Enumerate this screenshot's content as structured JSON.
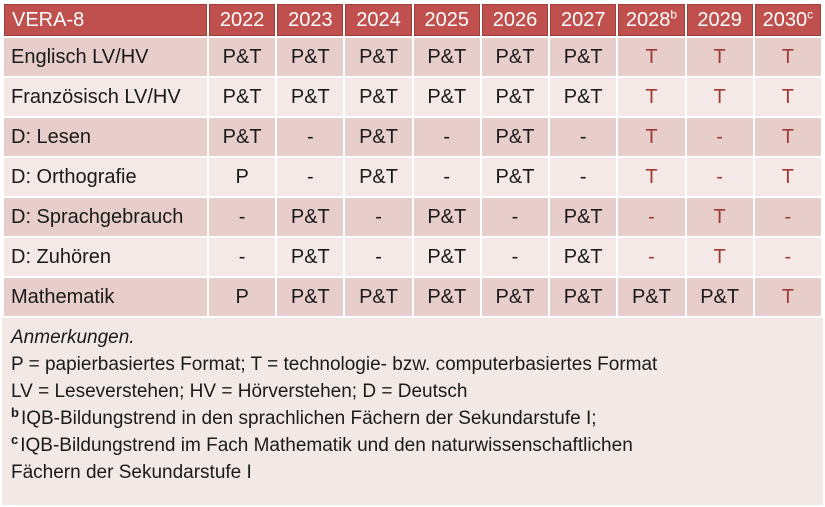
{
  "colors": {
    "header_bg": "#C0504D",
    "header_border": "#9D403C",
    "header_text": "#FFFFFF",
    "band_dark": "#E8CECB",
    "band_light": "#F4E9E6",
    "notes_bg": "#F2E9E6",
    "accent_text": "#9E3A34",
    "body_text": "#1A1A1A",
    "gridline": "#FFFFFF"
  },
  "table": {
    "title": "VERA-8",
    "header": [
      {
        "label": "VERA-8",
        "sup": ""
      },
      {
        "label": "2022",
        "sup": ""
      },
      {
        "label": "2023",
        "sup": ""
      },
      {
        "label": "2024",
        "sup": ""
      },
      {
        "label": "2025",
        "sup": ""
      },
      {
        "label": "2026",
        "sup": ""
      },
      {
        "label": "2027",
        "sup": ""
      },
      {
        "label": "2028",
        "sup": "b"
      },
      {
        "label": "2029",
        "sup": ""
      },
      {
        "label": "2030",
        "sup": "c"
      }
    ],
    "rows": [
      {
        "label": "Englisch LV/HV",
        "band": "dark",
        "cells": [
          {
            "v": "P&T",
            "red": false
          },
          {
            "v": "P&T",
            "red": false
          },
          {
            "v": "P&T",
            "red": false
          },
          {
            "v": "P&T",
            "red": false
          },
          {
            "v": "P&T",
            "red": false
          },
          {
            "v": "P&T",
            "red": false
          },
          {
            "v": "T",
            "red": true
          },
          {
            "v": "T",
            "red": true
          },
          {
            "v": "T",
            "red": true
          }
        ]
      },
      {
        "label": "Französisch LV/HV",
        "band": "light",
        "cells": [
          {
            "v": "P&T",
            "red": false
          },
          {
            "v": "P&T",
            "red": false
          },
          {
            "v": "P&T",
            "red": false
          },
          {
            "v": "P&T",
            "red": false
          },
          {
            "v": "P&T",
            "red": false
          },
          {
            "v": "P&T",
            "red": false
          },
          {
            "v": "T",
            "red": true
          },
          {
            "v": "T",
            "red": true
          },
          {
            "v": "T",
            "red": true
          }
        ]
      },
      {
        "label": "D: Lesen",
        "band": "dark",
        "cells": [
          {
            "v": "P&T",
            "red": false
          },
          {
            "v": "-",
            "red": false
          },
          {
            "v": "P&T",
            "red": false
          },
          {
            "v": "-",
            "red": false
          },
          {
            "v": "P&T",
            "red": false
          },
          {
            "v": "-",
            "red": false
          },
          {
            "v": "T",
            "red": true
          },
          {
            "v": "-",
            "red": true
          },
          {
            "v": "T",
            "red": true
          }
        ]
      },
      {
        "label": "D: Orthografie",
        "band": "light",
        "cells": [
          {
            "v": "P",
            "red": false
          },
          {
            "v": "-",
            "red": false
          },
          {
            "v": "P&T",
            "red": false
          },
          {
            "v": "-",
            "red": false
          },
          {
            "v": "P&T",
            "red": false
          },
          {
            "v": "-",
            "red": false
          },
          {
            "v": "T",
            "red": true
          },
          {
            "v": "-",
            "red": true
          },
          {
            "v": "T",
            "red": true
          }
        ]
      },
      {
        "label": "D: Sprachgebrauch",
        "band": "dark",
        "cells": [
          {
            "v": "-",
            "red": false
          },
          {
            "v": "P&T",
            "red": false
          },
          {
            "v": "-",
            "red": false
          },
          {
            "v": "P&T",
            "red": false
          },
          {
            "v": "-",
            "red": false
          },
          {
            "v": "P&T",
            "red": false
          },
          {
            "v": "-",
            "red": true
          },
          {
            "v": "T",
            "red": true
          },
          {
            "v": "-",
            "red": true
          }
        ]
      },
      {
        "label": "D: Zuhören",
        "band": "light",
        "cells": [
          {
            "v": "-",
            "red": false
          },
          {
            "v": "P&T",
            "red": false
          },
          {
            "v": "-",
            "red": false
          },
          {
            "v": "P&T",
            "red": false
          },
          {
            "v": "-",
            "red": false
          },
          {
            "v": "P&T",
            "red": false
          },
          {
            "v": "-",
            "red": true
          },
          {
            "v": "T",
            "red": true
          },
          {
            "v": "-",
            "red": true
          }
        ]
      },
      {
        "label": "Mathematik",
        "band": "dark",
        "cells": [
          {
            "v": "P",
            "red": false
          },
          {
            "v": "P&T",
            "red": false
          },
          {
            "v": "P&T",
            "red": false
          },
          {
            "v": "P&T",
            "red": false
          },
          {
            "v": "P&T",
            "red": false
          },
          {
            "v": "P&T",
            "red": false
          },
          {
            "v": "P&T",
            "red": false
          },
          {
            "v": "P&T",
            "red": false
          },
          {
            "v": "T",
            "red": true
          }
        ]
      }
    ]
  },
  "notes": {
    "title": "Anmerkungen.",
    "lines": [
      {
        "sup": "",
        "text": "P = papierbasiertes Format; T = technologie- bzw. computerbasiertes Format"
      },
      {
        "sup": "",
        "text": "LV = Leseverstehen; HV = Hörverstehen; D = Deutsch"
      },
      {
        "sup": "b",
        "text": "IQB-Bildungstrend in den sprachlichen Fächern der Sekundarstufe I;"
      },
      {
        "sup": "c",
        "text": "IQB-Bildungstrend im Fach Mathematik und den naturwissenschaftlichen"
      },
      {
        "sup": "",
        "text": "Fächern der Sekundarstufe I"
      }
    ]
  },
  "chart_data": {
    "type": "table",
    "title": "VERA-8",
    "columns": [
      "VERA-8",
      "2022",
      "2023",
      "2024",
      "2025",
      "2026",
      "2027",
      "2028",
      "2029",
      "2030"
    ],
    "rows": [
      [
        "Englisch LV/HV",
        "P&T",
        "P&T",
        "P&T",
        "P&T",
        "P&T",
        "P&T",
        "T",
        "T",
        "T"
      ],
      [
        "Französisch LV/HV",
        "P&T",
        "P&T",
        "P&T",
        "P&T",
        "P&T",
        "P&T",
        "T",
        "T",
        "T"
      ],
      [
        "D: Lesen",
        "P&T",
        "-",
        "P&T",
        "-",
        "P&T",
        "-",
        "T",
        "-",
        "T"
      ],
      [
        "D: Orthografie",
        "P",
        "-",
        "P&T",
        "-",
        "P&T",
        "-",
        "T",
        "-",
        "T"
      ],
      [
        "D: Sprachgebrauch",
        "-",
        "P&T",
        "-",
        "P&T",
        "-",
        "P&T",
        "-",
        "T",
        "-"
      ],
      [
        "D: Zuhören",
        "-",
        "P&T",
        "-",
        "P&T",
        "-",
        "P&T",
        "-",
        "T",
        "-"
      ],
      [
        "Mathematik",
        "P",
        "P&T",
        "P&T",
        "P&T",
        "P&T",
        "P&T",
        "P&T",
        "P&T",
        "T"
      ]
    ]
  }
}
